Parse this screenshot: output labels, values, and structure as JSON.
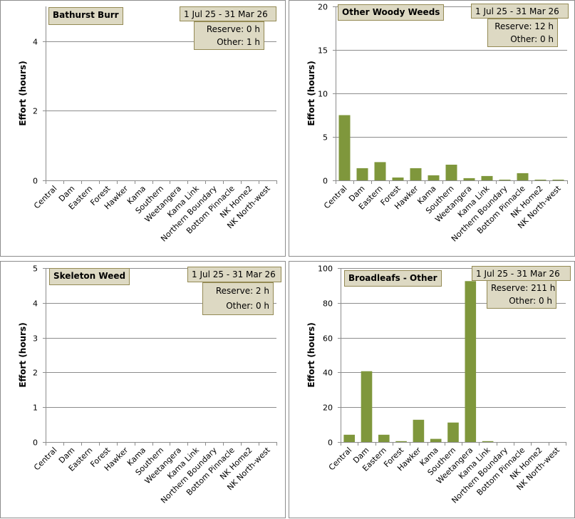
{
  "colors": {
    "bar": "#7f973c",
    "box_fill": "#ddd9c3",
    "box_border": "#948a54",
    "grid": "#8c8c8c"
  },
  "chart_data": [
    {
      "type": "bar",
      "title": "Bathurst Burr",
      "date_range": "1 Jul 25  -  31 Mar 26",
      "summary": {
        "reserve": "Reserve:  0 h",
        "other": "Other:  1 h"
      },
      "xlabel": "",
      "ylabel": "Effort  (hours)",
      "ylim": [
        0,
        5
      ],
      "yticks": [
        0,
        2,
        4
      ],
      "grid": true,
      "categories": [
        "Central",
        "Dam",
        "Eastern",
        "Forest",
        "Hawker",
        "Kama",
        "Southern",
        "Weetangera",
        "Kama Link",
        "Northern Boundary",
        "Bottom Pinnacle",
        "NK Home2",
        "NK North-west"
      ],
      "values": [
        0,
        0,
        0,
        0,
        0,
        0,
        0,
        0,
        0,
        0,
        0,
        0,
        0
      ]
    },
    {
      "type": "bar",
      "title": "Other Woody Weeds",
      "date_range": "1 Jul 25  -  31 Mar 26",
      "summary": {
        "reserve": "Reserve:  12 h",
        "other": "Other:  0 h"
      },
      "xlabel": "",
      "ylabel": "Effort  (hours)",
      "ylim": [
        0,
        20
      ],
      "yticks": [
        0,
        5,
        10,
        15,
        20
      ],
      "grid": true,
      "categories": [
        "Central",
        "Dam",
        "Eastern",
        "Forest",
        "Hawker",
        "Kama",
        "Southern",
        "Weetangera",
        "Kama Link",
        "Northern Boundary",
        "Bottom Pinnacle",
        "NK Home2",
        "NK North-west"
      ],
      "values": [
        7.5,
        1.4,
        2.1,
        0.33,
        1.4,
        0.58,
        1.8,
        0.25,
        0.5,
        0.08,
        0.83,
        0.08,
        0.08
      ]
    },
    {
      "type": "bar",
      "title": "Skeleton Weed",
      "date_range": "1 Jul 25  -  31 Mar 26",
      "summary": {
        "reserve": "Reserve:  2 h",
        "other": "Other:  0 h"
      },
      "xlabel": "",
      "ylabel": "Effort  (hours)",
      "ylim": [
        0,
        5
      ],
      "yticks": [
        0,
        1,
        2,
        3,
        4,
        5
      ],
      "grid": true,
      "categories": [
        "Central",
        "Dam",
        "Eastern",
        "Forest",
        "Hawker",
        "Kama",
        "Southern",
        "Weetangera",
        "Kama Link",
        "Northern Boundary",
        "Bottom Pinnacle",
        "NK Home2",
        "NK North-west"
      ],
      "values": [
        0,
        0,
        0,
        0,
        0,
        0,
        0,
        0,
        0,
        0,
        0,
        0,
        0
      ]
    },
    {
      "type": "bar",
      "title": "Broadleafs - Other",
      "date_range": "1 Jul 25  -  31 Mar 26",
      "summary": {
        "reserve": "Reserve:  211 h",
        "other": "Other:  0 h"
      },
      "xlabel": "",
      "ylabel": "Effort  (hours)",
      "ylim": [
        0,
        100
      ],
      "yticks": [
        0,
        20,
        40,
        60,
        80,
        100
      ],
      "grid": true,
      "categories": [
        "Central",
        "Dam",
        "Eastern",
        "Forest",
        "Hawker",
        "Kama",
        "Southern",
        "Weetangera",
        "Kama Link",
        "Northern Boundary",
        "Bottom Pinnacle",
        "NK Home2",
        "NK North-west"
      ],
      "values": [
        4.2,
        40.7,
        4.2,
        0.5,
        12.8,
        1.8,
        11.2,
        92.5,
        0.5,
        0,
        0,
        0,
        0
      ]
    }
  ]
}
